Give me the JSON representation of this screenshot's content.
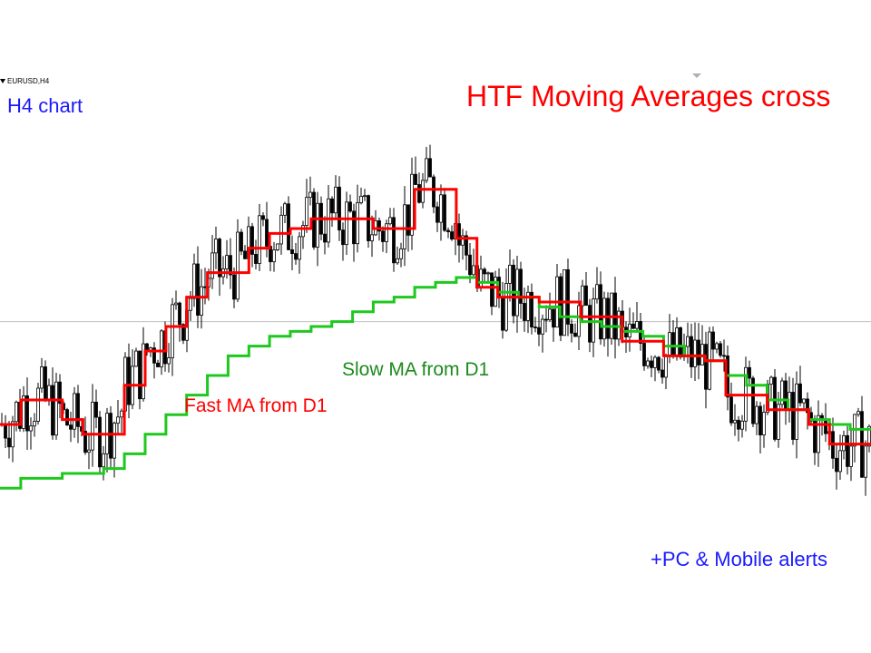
{
  "symbol": "EURUSD,H4",
  "title": "HTF Moving Averages cross",
  "timeframe_label": "H4 chart",
  "slow_ma_label": "Slow MA from D1",
  "fast_ma_label": "Fast MA from D1",
  "alerts_label": "+PC & Mobile alerts",
  "colors": {
    "background": "#ffffff",
    "candles": "#000000",
    "fast_ma": "#ff0000",
    "slow_ma": "#1ec81e",
    "title_text": "#ff0000",
    "info_text": "#1a1aff",
    "slow_label_text": "#1c8a1c",
    "price_line": "#c0c0c0"
  },
  "chart_data": {
    "type": "candlestick",
    "title": "HTF Moving Averages cross",
    "ylim": [
      0,
      100
    ],
    "reference_price": 51,
    "grid": false,
    "series": [
      {
        "name": "Fast MA from D1",
        "values": [
          30,
          35,
          35,
          31,
          28,
          28,
          38,
          45,
          50,
          56,
          61,
          61,
          66,
          69,
          70,
          72,
          72,
          72,
          70,
          70,
          78,
          78,
          68,
          58,
          56,
          56,
          55,
          55,
          52,
          52,
          47,
          47,
          44,
          44,
          43,
          36,
          36,
          33,
          33,
          30,
          26,
          26
        ]
      },
      {
        "name": "Slow MA from D1",
        "values": [
          17,
          19,
          19,
          20,
          20,
          21,
          24,
          28,
          32,
          36,
          40,
          44,
          46,
          48,
          49,
          50,
          51,
          53,
          55,
          56,
          58,
          59,
          60,
          59,
          57,
          56,
          54,
          52,
          51,
          50,
          49,
          48,
          46,
          44,
          43,
          40,
          38,
          35,
          33,
          31,
          30,
          29
        ]
      }
    ]
  }
}
